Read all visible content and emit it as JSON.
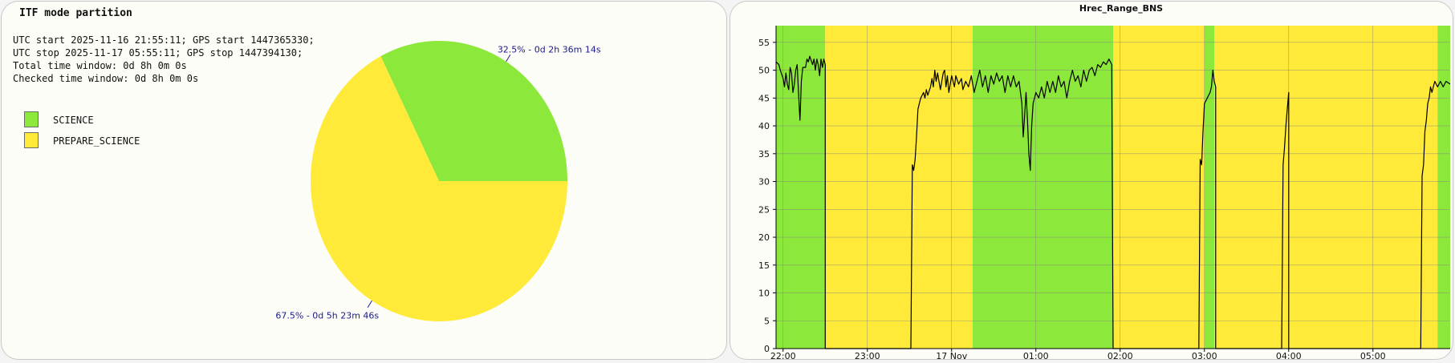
{
  "pie_panel": {
    "title": "ITF mode partition",
    "info_lines": [
      "UTC start 2025-11-16 21:55:11; GPS start 1447365330;",
      "UTC stop 2025-11-17 05:55:11; GPS stop 1447394130;",
      "Total time window: 0d 8h 0m 0s",
      "Checked time window: 0d 8h 0m 0s"
    ]
  },
  "colors": {
    "science": "#8de83c",
    "prepare_science": "#ffea3a",
    "label_text": "#1a1a8c",
    "line": "#000000",
    "grid": "#808080"
  },
  "chart_data": [
    {
      "type": "pie",
      "title": "ITF mode partition",
      "legend": [
        "SCIENCE",
        "PREPARE_SCIENCE"
      ],
      "legend_position": "left",
      "slices": [
        {
          "name": "SCIENCE",
          "value": 32.5,
          "label": "32.5% - 0d 2h 36m 14s",
          "color": "#8de83c"
        },
        {
          "name": "PREPARE_SCIENCE",
          "value": 67.5,
          "label": "67.5% - 0d 5h 23m 46s",
          "color": "#ffea3a"
        }
      ]
    },
    {
      "type": "line",
      "title": "Hrec_Range_BNS",
      "xlabel": "",
      "ylabel": "",
      "x_range": [
        "21:55",
        "05:55"
      ],
      "ylim": [
        0,
        58
      ],
      "grid": true,
      "x_ticks": [
        "22:00",
        "23:00",
        "17 Nov",
        "01:00",
        "02:00",
        "03:00",
        "04:00",
        "05:00"
      ],
      "y_ticks": [
        0,
        5,
        10,
        15,
        20,
        25,
        30,
        35,
        40,
        45,
        50,
        55
      ],
      "background_bands": [
        {
          "state": "SCIENCE",
          "start": "21:55",
          "end": "22:30"
        },
        {
          "state": "PREPARE_SCIENCE",
          "start": "22:30",
          "end": "00:15"
        },
        {
          "state": "SCIENCE",
          "start": "00:15",
          "end": "01:55"
        },
        {
          "state": "PREPARE_SCIENCE",
          "start": "01:55",
          "end": "03:00"
        },
        {
          "state": "SCIENCE",
          "start": "03:00",
          "end": "03:07"
        },
        {
          "state": "PREPARE_SCIENCE",
          "start": "03:07",
          "end": "05:46"
        },
        {
          "state": "SCIENCE",
          "start": "05:46",
          "end": "05:55"
        }
      ],
      "series": [
        {
          "points": [
            [
              "21:55",
              51.5
            ],
            [
              "21:57",
              51
            ],
            [
              "21:58",
              50
            ],
            [
              "22:00",
              48.5
            ],
            [
              "22:01",
              47
            ],
            [
              "22:02",
              49.5
            ],
            [
              "22:03",
              47.5
            ],
            [
              "22:04",
              46.5
            ],
            [
              "22:05",
              50.5
            ],
            [
              "22:06",
              49.5
            ],
            [
              "22:07",
              46
            ],
            [
              "22:08",
              47.5
            ],
            [
              "22:09",
              50
            ],
            [
              "22:10",
              51
            ],
            [
              "22:11",
              46
            ],
            [
              "22:12",
              41
            ],
            [
              "22:13",
              48
            ],
            [
              "22:14",
              50.5
            ],
            [
              "22:16",
              50.5
            ],
            [
              "22:17",
              52
            ],
            [
              "22:18",
              51.5
            ],
            [
              "22:19",
              52.5
            ],
            [
              "22:21",
              51
            ],
            [
              "22:22",
              52
            ],
            [
              "22:23",
              50
            ],
            [
              "22:24",
              52
            ],
            [
              "22:25",
              51
            ],
            [
              "22:26",
              49
            ],
            [
              "22:27",
              52
            ],
            [
              "22:28",
              50.5
            ],
            [
              "22:29",
              52
            ],
            [
              "22:30",
              51
            ],
            [
              "22:30",
              0
            ],
            [
              "23:31",
              0
            ],
            [
              "23:32",
              33
            ],
            [
              "23:33",
              32
            ],
            [
              "23:34",
              34
            ],
            [
              "23:35",
              38
            ],
            [
              "23:36",
              43
            ],
            [
              "23:37",
              44
            ],
            [
              "23:38",
              45
            ],
            [
              "23:40",
              46
            ],
            [
              "23:41",
              45
            ],
            [
              "23:42",
              46.5
            ],
            [
              "23:43",
              45.5
            ],
            [
              "23:45",
              47
            ],
            [
              "23:46",
              48.5
            ],
            [
              "23:47",
              47
            ],
            [
              "23:48",
              50
            ],
            [
              "23:49",
              48
            ],
            [
              "23:50",
              49.5
            ],
            [
              "23:51",
              48
            ],
            [
              "23:52",
              46.5
            ],
            [
              "23:53",
              48
            ],
            [
              "23:54",
              49.5
            ],
            [
              "23:55",
              50
            ],
            [
              "23:56",
              47
            ],
            [
              "23:57",
              49
            ],
            [
              "23:58",
              46
            ],
            [
              "24:00",
              49
            ],
            [
              "24:02",
              47
            ],
            [
              "24:03",
              49
            ],
            [
              "24:05",
              47.5
            ],
            [
              "24:07",
              48.5
            ],
            [
              "24:08",
              46.5
            ],
            [
              "24:10",
              48
            ],
            [
              "24:12",
              47
            ],
            [
              "24:14",
              49
            ],
            [
              "24:16",
              46
            ],
            [
              "24:18",
              48
            ],
            [
              "24:20",
              50
            ],
            [
              "24:22",
              47
            ],
            [
              "24:24",
              49
            ],
            [
              "24:26",
              46
            ],
            [
              "24:28",
              49
            ],
            [
              "24:30",
              47.5
            ],
            [
              "24:32",
              49.5
            ],
            [
              "24:34",
              48
            ],
            [
              "24:36",
              49
            ],
            [
              "24:38",
              46
            ],
            [
              "24:40",
              49
            ],
            [
              "24:42",
              47
            ],
            [
              "24:44",
              49
            ],
            [
              "24:46",
              47
            ],
            [
              "24:48",
              48
            ],
            [
              "24:50",
              44
            ],
            [
              "24:51",
              38
            ],
            [
              "24:52",
              42
            ],
            [
              "24:53",
              46
            ],
            [
              "24:54",
              41
            ],
            [
              "24:55",
              35
            ],
            [
              "24:56",
              32
            ],
            [
              "24:57",
              40
            ],
            [
              "24:58",
              44
            ],
            [
              "25:00",
              46
            ],
            [
              "25:02",
              45
            ],
            [
              "25:04",
              47
            ],
            [
              "25:06",
              45
            ],
            [
              "25:08",
              48
            ],
            [
              "25:10",
              46
            ],
            [
              "25:12",
              48
            ],
            [
              "25:14",
              46
            ],
            [
              "25:16",
              49
            ],
            [
              "25:18",
              47
            ],
            [
              "25:20",
              48
            ],
            [
              "25:22",
              45
            ],
            [
              "25:24",
              48
            ],
            [
              "25:26",
              50
            ],
            [
              "25:28",
              48
            ],
            [
              "25:30",
              49
            ],
            [
              "25:32",
              47
            ],
            [
              "25:34",
              50
            ],
            [
              "25:36",
              48
            ],
            [
              "25:38",
              50
            ],
            [
              "25:40",
              50.5
            ],
            [
              "25:42",
              49
            ],
            [
              "25:44",
              51
            ],
            [
              "25:46",
              50.5
            ],
            [
              "25:48",
              51.5
            ],
            [
              "25:50",
              51
            ],
            [
              "25:52",
              52
            ],
            [
              "25:54",
              51
            ],
            [
              "25:55",
              0
            ],
            [
              "26:56",
              0
            ],
            [
              "26:57",
              34
            ],
            [
              "26:58",
              33
            ],
            [
              "26:59",
              39
            ],
            [
              "27:00",
              44
            ],
            [
              "27:02",
              45
            ],
            [
              "27:04",
              46
            ],
            [
              "27:05",
              47
            ],
            [
              "27:06",
              50
            ],
            [
              "27:07",
              48
            ],
            [
              "27:08",
              47
            ],
            [
              "27:08",
              0
            ],
            [
              "27:55",
              0
            ],
            [
              "27:56",
              33
            ],
            [
              "27:57",
              36
            ],
            [
              "27:58",
              40
            ],
            [
              "27:59",
              43
            ],
            [
              "28:00",
              46
            ],
            [
              "28:00",
              0
            ],
            [
              "29:34",
              0
            ],
            [
              "29:35",
              31
            ],
            [
              "29:36",
              33
            ],
            [
              "29:37",
              39
            ],
            [
              "29:38",
              41
            ],
            [
              "29:39",
              44
            ],
            [
              "29:40",
              45
            ],
            [
              "29:41",
              47
            ],
            [
              "29:42",
              46
            ],
            [
              "29:43",
              47
            ],
            [
              "29:44",
              48
            ],
            [
              "29:46",
              47
            ],
            [
              "29:48",
              48
            ],
            [
              "29:50",
              47
            ],
            [
              "29:52",
              48
            ],
            [
              "29:55",
              47.5
            ]
          ]
        }
      ]
    }
  ]
}
